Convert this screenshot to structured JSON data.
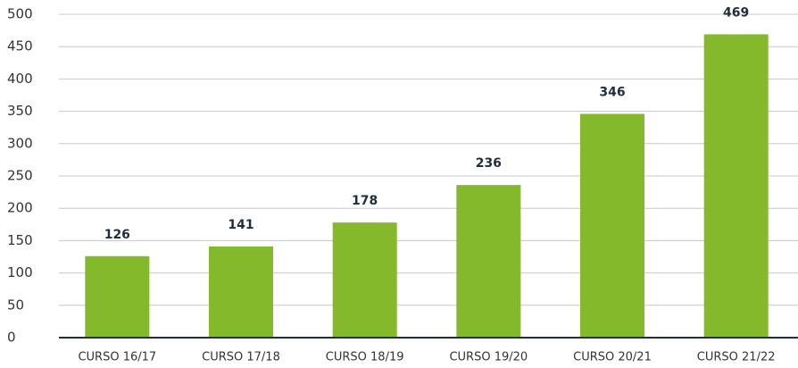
{
  "chart_data": {
    "type": "bar",
    "categories": [
      "CURSO 16/17",
      "CURSO 17/18",
      "CURSO 18/19",
      "CURSO 19/20",
      "CURSO 20/21",
      "CURSO 21/22"
    ],
    "values": [
      126,
      141,
      178,
      236,
      346,
      469
    ],
    "color": "#84b92b",
    "ylim": [
      0,
      500
    ],
    "yticks": [
      0,
      50,
      100,
      150,
      200,
      250,
      300,
      350,
      400,
      450,
      500
    ],
    "grid": true
  }
}
